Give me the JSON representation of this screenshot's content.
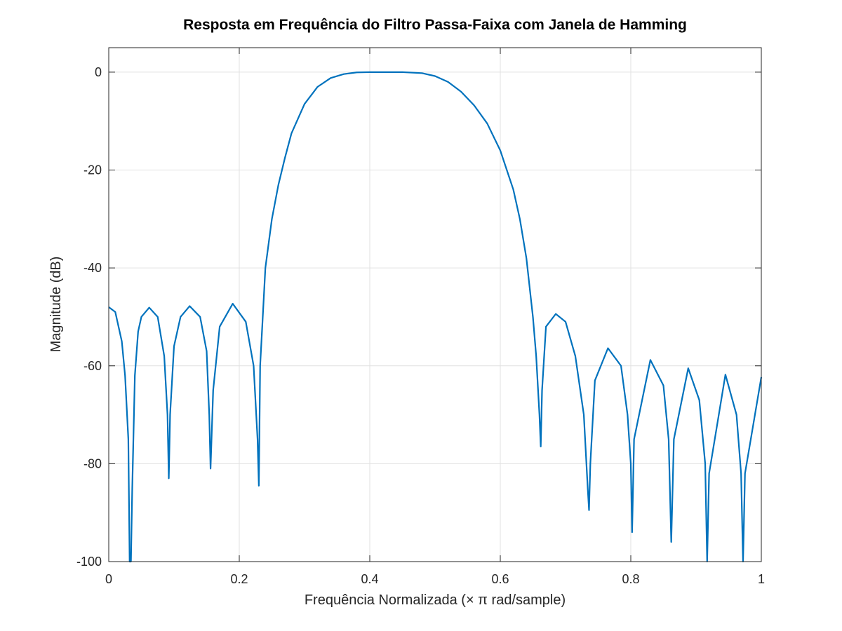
{
  "chart_data": {
    "type": "line",
    "title": "Resposta em Frequência do Filtro Passa-Faixa com Janela de Hamming",
    "xlabel": "Frequência Normalizada (× π rad/sample)",
    "ylabel": "Magnitude (dB)",
    "xlim": [
      0,
      1
    ],
    "ylim": [
      -100,
      5
    ],
    "xticks": [
      0,
      0.2,
      0.4,
      0.6,
      0.8,
      1
    ],
    "xtick_labels": [
      "0",
      "0.2",
      "0.4",
      "0.6",
      "0.8",
      "1"
    ],
    "yticks": [
      0,
      -20,
      -40,
      -60,
      -80,
      -100
    ],
    "ytick_labels": [
      "0",
      "-20",
      "-40",
      "-60",
      "-80",
      "-100"
    ],
    "grid": true,
    "line_color": "#0072BD",
    "series": [
      {
        "name": "",
        "x": [
          0,
          0.01,
          0.02,
          0.025,
          0.03,
          0.032,
          0.033,
          0.034,
          0.036,
          0.04,
          0.045,
          0.05,
          0.062,
          0.075,
          0.085,
          0.09,
          0.092,
          0.094,
          0.1,
          0.11,
          0.124,
          0.14,
          0.15,
          0.154,
          0.156,
          0.16,
          0.17,
          0.19,
          0.21,
          0.222,
          0.228,
          0.23,
          0.232,
          0.24,
          0.25,
          0.26,
          0.27,
          0.28,
          0.3,
          0.32,
          0.34,
          0.36,
          0.38,
          0.4,
          0.42,
          0.45,
          0.48,
          0.5,
          0.52,
          0.54,
          0.56,
          0.58,
          0.6,
          0.62,
          0.63,
          0.64,
          0.65,
          0.655,
          0.66,
          0.662,
          0.664,
          0.67,
          0.685,
          0.7,
          0.715,
          0.728,
          0.734,
          0.736,
          0.738,
          0.745,
          0.765,
          0.785,
          0.795,
          0.8,
          0.802,
          0.805,
          0.83,
          0.85,
          0.858,
          0.862,
          0.866,
          0.888,
          0.905,
          0.914,
          0.917,
          0.92,
          0.945,
          0.962,
          0.969,
          0.972,
          0.975,
          1
        ],
        "values": [
          -48,
          -49,
          -55,
          -62,
          -75,
          -100,
          -100,
          -100,
          -85,
          -62,
          -53,
          -50,
          -48.1,
          -50,
          -58,
          -70,
          -83,
          -70,
          -56,
          -50,
          -47.8,
          -50,
          -57,
          -70,
          -81,
          -65,
          -52,
          -47.3,
          -51,
          -60,
          -75,
          -84.5,
          -60,
          -40,
          -30,
          -23,
          -17.5,
          -12.5,
          -6.5,
          -3,
          -1.2,
          -0.4,
          -0.05,
          0,
          0,
          0,
          -0.2,
          -0.8,
          -2,
          -4,
          -6.8,
          -10.5,
          -16,
          -24,
          -30,
          -38,
          -50,
          -58,
          -70,
          -76.5,
          -65,
          -52,
          -49.4,
          -51,
          -58,
          -70,
          -85,
          -89.5,
          -80,
          -63,
          -56.4,
          -60,
          -70,
          -80,
          -94,
          -75,
          -58.8,
          -64,
          -75,
          -96,
          -75,
          -60.5,
          -67,
          -80,
          -100,
          -82,
          -61.8,
          -70,
          -82,
          -100,
          -82,
          -62.3
        ]
      }
    ]
  }
}
